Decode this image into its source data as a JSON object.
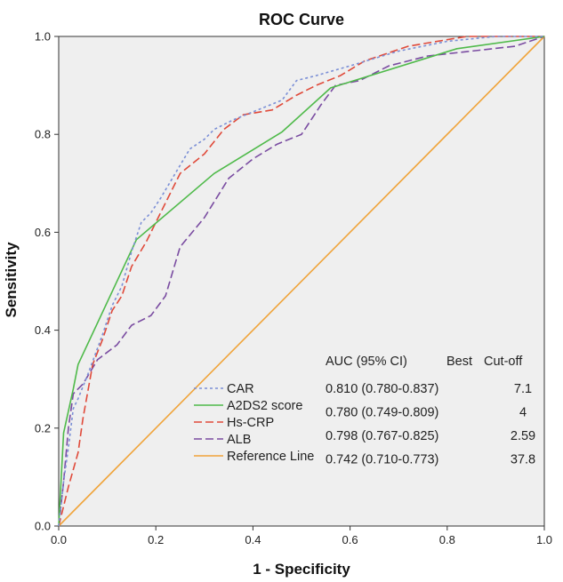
{
  "chart_data": {
    "type": "line",
    "title": "ROC Curve",
    "xlabel": "1 - Specificity",
    "ylabel": "Sensitivity",
    "xlim": [
      0,
      1
    ],
    "ylim": [
      0,
      1
    ],
    "xticks": [
      "0.0",
      "0.2",
      "0.4",
      "0.6",
      "0.8",
      "1.0"
    ],
    "yticks": [
      "0.0",
      "0.2",
      "0.4",
      "0.6",
      "0.8",
      "1.0"
    ],
    "grid": false,
    "legend_position": "bottom-right",
    "background": "#efefef",
    "series": [
      {
        "name": "CAR",
        "color": "#7b8fd6",
        "dash": "dotted",
        "points": [
          [
            0,
            0
          ],
          [
            0.01,
            0.09
          ],
          [
            0.02,
            0.16
          ],
          [
            0.03,
            0.24
          ],
          [
            0.04,
            0.26
          ],
          [
            0.06,
            0.31
          ],
          [
            0.09,
            0.39
          ],
          [
            0.11,
            0.45
          ],
          [
            0.13,
            0.49
          ],
          [
            0.15,
            0.56
          ],
          [
            0.17,
            0.62
          ],
          [
            0.19,
            0.64
          ],
          [
            0.21,
            0.67
          ],
          [
            0.24,
            0.72
          ],
          [
            0.27,
            0.77
          ],
          [
            0.3,
            0.79
          ],
          [
            0.32,
            0.81
          ],
          [
            0.36,
            0.83
          ],
          [
            0.41,
            0.85
          ],
          [
            0.46,
            0.87
          ],
          [
            0.49,
            0.91
          ],
          [
            0.53,
            0.92
          ],
          [
            0.6,
            0.94
          ],
          [
            0.7,
            0.97
          ],
          [
            0.8,
            0.99
          ],
          [
            0.9,
            1.0
          ],
          [
            1,
            1
          ]
        ]
      },
      {
        "name": "A2DS2 score",
        "color": "#4fba4a",
        "dash": "solid",
        "points": [
          [
            0,
            0
          ],
          [
            0.01,
            0.19
          ],
          [
            0.03,
            0.28
          ],
          [
            0.04,
            0.33
          ],
          [
            0.16,
            0.585
          ],
          [
            0.32,
            0.72
          ],
          [
            0.46,
            0.805
          ],
          [
            0.56,
            0.895
          ],
          [
            0.82,
            0.975
          ],
          [
            1,
            1
          ]
        ]
      },
      {
        "name": "Hs-CRP",
        "color": "#e04a3a",
        "dash": "dashed",
        "points": [
          [
            0,
            0
          ],
          [
            0.02,
            0.08
          ],
          [
            0.04,
            0.15
          ],
          [
            0.05,
            0.22
          ],
          [
            0.07,
            0.33
          ],
          [
            0.09,
            0.38
          ],
          [
            0.11,
            0.44
          ],
          [
            0.13,
            0.47
          ],
          [
            0.15,
            0.53
          ],
          [
            0.18,
            0.58
          ],
          [
            0.22,
            0.66
          ],
          [
            0.25,
            0.72
          ],
          [
            0.3,
            0.76
          ],
          [
            0.34,
            0.81
          ],
          [
            0.38,
            0.84
          ],
          [
            0.44,
            0.85
          ],
          [
            0.49,
            0.88
          ],
          [
            0.53,
            0.9
          ],
          [
            0.58,
            0.92
          ],
          [
            0.63,
            0.95
          ],
          [
            0.72,
            0.98
          ],
          [
            0.84,
            1.0
          ],
          [
            1,
            1
          ]
        ]
      },
      {
        "name": "ALB",
        "color": "#7a4ca1",
        "dash": "dashed",
        "points": [
          [
            0,
            0
          ],
          [
            0.01,
            0.09
          ],
          [
            0.02,
            0.2
          ],
          [
            0.03,
            0.27
          ],
          [
            0.05,
            0.29
          ],
          [
            0.08,
            0.34
          ],
          [
            0.12,
            0.37
          ],
          [
            0.15,
            0.41
          ],
          [
            0.19,
            0.43
          ],
          [
            0.22,
            0.47
          ],
          [
            0.25,
            0.57
          ],
          [
            0.3,
            0.63
          ],
          [
            0.35,
            0.71
          ],
          [
            0.4,
            0.75
          ],
          [
            0.45,
            0.78
          ],
          [
            0.5,
            0.8
          ],
          [
            0.54,
            0.86
          ],
          [
            0.57,
            0.9
          ],
          [
            0.62,
            0.91
          ],
          [
            0.68,
            0.94
          ],
          [
            0.76,
            0.96
          ],
          [
            0.85,
            0.97
          ],
          [
            0.94,
            0.98
          ],
          [
            1,
            1
          ]
        ]
      },
      {
        "name": "Reference Line",
        "color": "#f0a43a",
        "dash": "solid",
        "points": [
          [
            0,
            0
          ],
          [
            1,
            1
          ]
        ]
      }
    ],
    "annotations": {
      "header": [
        "AUC (95% CI)",
        "Best",
        "Cut-off"
      ],
      "rows": [
        {
          "auc": "0.810 (0.780-0.837)",
          "cutoff": "7.1"
        },
        {
          "auc": "0.780 (0.749-0.809)",
          "cutoff": "4"
        },
        {
          "auc": "0.798 (0.767-0.825)",
          "cutoff": "2.59"
        },
        {
          "auc": "0.742 (0.710-0.773)",
          "cutoff": "37.8"
        }
      ]
    }
  }
}
